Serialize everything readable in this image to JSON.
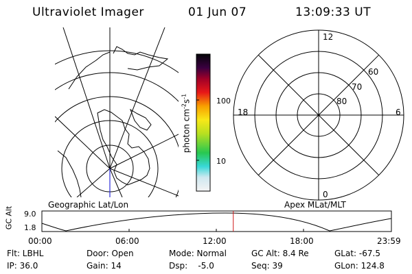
{
  "header": {
    "instrument": "Ultraviolet Imager",
    "date": "01 Jun 07",
    "time": "13:09:33 UT"
  },
  "geo_panel": {
    "label": "Geographic Lat/Lon"
  },
  "colorbar": {
    "unit_label": "photon cm",
    "unit_sup1": "-2",
    "unit_mid": "s",
    "unit_sup2": "-1",
    "ticks": [
      "100",
      "10"
    ]
  },
  "polar_panel": {
    "label": "Apex MLat/MLT",
    "mlt_labels": {
      "top": "12",
      "bottom": "0",
      "left": "18",
      "right": "6"
    },
    "mlat_labels": [
      "60",
      "70",
      "80"
    ]
  },
  "altitude_plot": {
    "ylabel": "GC Alt",
    "y_ticks": [
      "9.0",
      "1.8"
    ],
    "x_ticks": [
      "00:00",
      "06:00",
      "12:00",
      "18:00",
      "23:59"
    ],
    "current_time_marker_fraction": 0.5476,
    "marker_color": "#d01818"
  },
  "info": {
    "row1": {
      "flt": "Flt: LBHL",
      "door": "Door: Open",
      "mode": "Mode: Normal",
      "gcalt": "GC Alt: 8.4 Re",
      "glat": "GLat: -67.5"
    },
    "row2": {
      "ip": "IP: 36.0",
      "gain": "Gain: 14",
      "dsp": "Dsp:    -5.0",
      "seq": "Seq: 39",
      "glon": "GLon: 124.8"
    }
  }
}
